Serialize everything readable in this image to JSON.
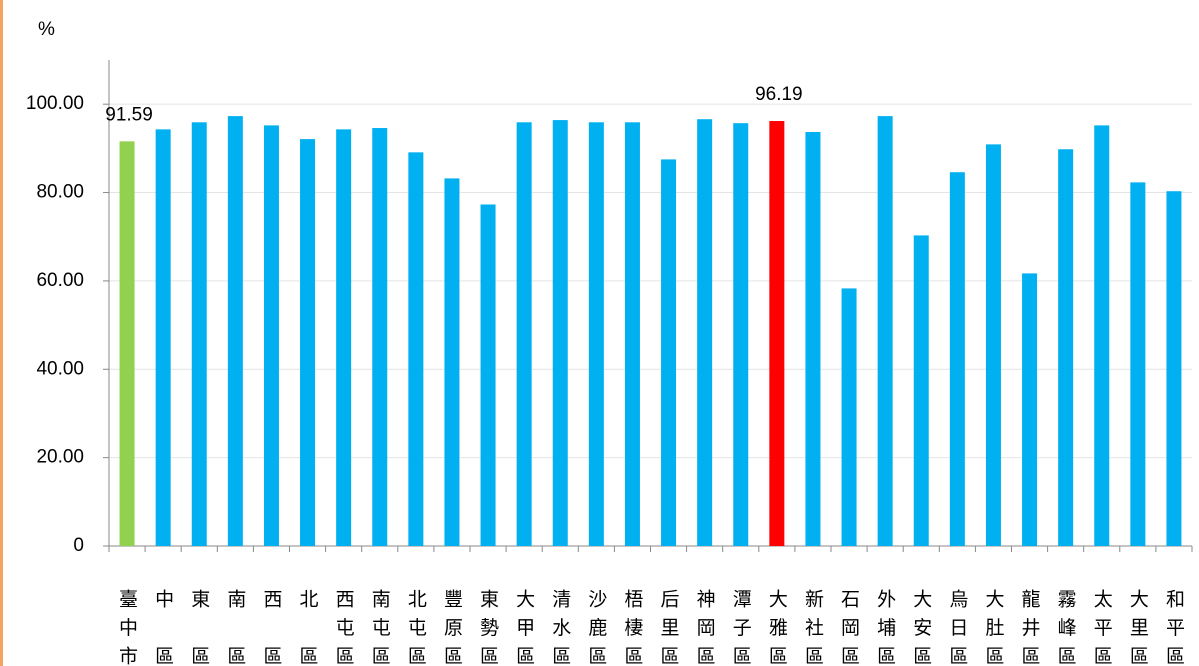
{
  "chart_data": {
    "type": "bar",
    "y_unit_label": "%",
    "categories": [
      "臺中市",
      "中區",
      "東區",
      "南區",
      "西區",
      "北區",
      "西屯區",
      "南屯區",
      "北屯區",
      "豐原區",
      "東勢區",
      "大甲區",
      "清水區",
      "沙鹿區",
      "梧棲區",
      "后里區",
      "神岡區",
      "潭子區",
      "大雅區",
      "新社區",
      "石岡區",
      "外埔區",
      "大安區",
      "烏日區",
      "大肚區",
      "龍井區",
      "霧峰區",
      "太平區",
      "大里區",
      "和平區"
    ],
    "values": [
      91.59,
      94.3,
      95.9,
      97.3,
      95.2,
      92.1,
      94.3,
      94.6,
      89.1,
      83.2,
      77.3,
      95.9,
      96.4,
      95.9,
      95.9,
      87.5,
      96.6,
      95.7,
      96.19,
      93.7,
      58.3,
      97.3,
      70.3,
      84.6,
      90.9,
      61.7,
      89.8,
      95.2,
      82.3,
      80.3
    ],
    "value_labels": [
      "91.59",
      null,
      null,
      null,
      null,
      null,
      null,
      null,
      null,
      null,
      null,
      null,
      null,
      null,
      null,
      null,
      null,
      null,
      "96.19",
      null,
      null,
      null,
      null,
      null,
      null,
      null,
      null,
      null,
      null,
      null
    ],
    "colors": [
      "#92d050",
      "#00b0f0",
      "#00b0f0",
      "#00b0f0",
      "#00b0f0",
      "#00b0f0",
      "#00b0f0",
      "#00b0f0",
      "#00b0f0",
      "#00b0f0",
      "#00b0f0",
      "#00b0f0",
      "#00b0f0",
      "#00b0f0",
      "#00b0f0",
      "#00b0f0",
      "#00b0f0",
      "#00b0f0",
      "#ff0000",
      "#00b0f0",
      "#00b0f0",
      "#00b0f0",
      "#00b0f0",
      "#00b0f0",
      "#00b0f0",
      "#00b0f0",
      "#00b0f0",
      "#00b0f0",
      "#00b0f0",
      "#00b0f0"
    ],
    "ylim": [
      0,
      110
    ],
    "yticks": [
      0,
      {
        "value": 20,
        "label": "20.00"
      },
      {
        "value": 40,
        "label": "40.00"
      },
      {
        "value": 60,
        "label": "60.00"
      },
      {
        "value": 80,
        "label": "80.00"
      },
      {
        "value": 100,
        "label": "100.00"
      }
    ],
    "grid": true
  }
}
